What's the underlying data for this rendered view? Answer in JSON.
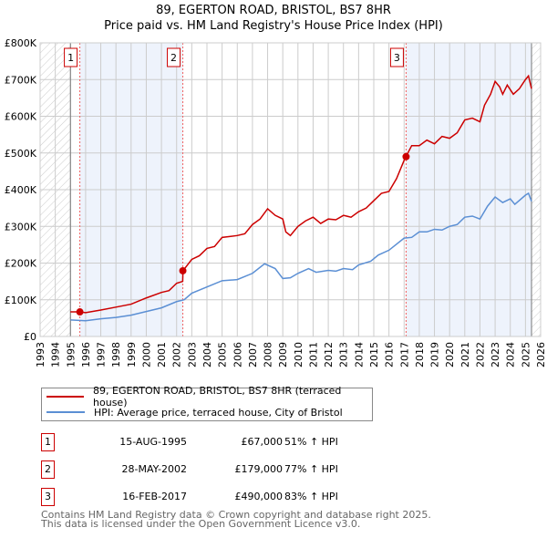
{
  "chart_data": {
    "type": "line",
    "title": "89, EGERTON ROAD, BRISTOL, BS7 8HR",
    "subtitle": "Price paid vs. HM Land Registry's House Price Index (HPI)",
    "xlim": [
      1993,
      2026
    ],
    "ylim": [
      0,
      800000
    ],
    "x_ticks": [
      "1993",
      "1994",
      "1995",
      "1996",
      "1997",
      "1998",
      "1999",
      "2000",
      "2001",
      "2002",
      "2003",
      "2004",
      "2005",
      "2006",
      "2007",
      "2008",
      "2009",
      "2010",
      "2011",
      "2012",
      "2013",
      "2014",
      "2015",
      "2016",
      "2017",
      "2018",
      "2019",
      "2020",
      "2021",
      "2022",
      "2023",
      "2024",
      "2025",
      "2026"
    ],
    "y_ticks": [
      {
        "v": 0,
        "label": "£0"
      },
      {
        "v": 100000,
        "label": "£100K"
      },
      {
        "v": 200000,
        "label": "£200K"
      },
      {
        "v": 300000,
        "label": "£300K"
      },
      {
        "v": 400000,
        "label": "£400K"
      },
      {
        "v": 500000,
        "label": "£500K"
      },
      {
        "v": 600000,
        "label": "£600K"
      },
      {
        "v": 700000,
        "label": "£700K"
      },
      {
        "v": 800000,
        "label": "£800K"
      }
    ],
    "grid": true,
    "data_start": 1995.0,
    "data_end": 2025.4,
    "series": [
      {
        "name": "89, EGERTON ROAD, BRISTOL, BS7 8HR (terraced house)",
        "color": "#cc0000",
        "x": [
          1995,
          1995.6,
          1996,
          1997,
          1998,
          1999,
          2000,
          2001,
          2001.5,
          2002,
          2002.4,
          2002.42,
          2003,
          2003.5,
          2004,
          2004.5,
          2005,
          2006,
          2006.5,
          2007,
          2007.5,
          2008,
          2008.5,
          2009,
          2009.2,
          2009.5,
          2010,
          2010.5,
          2011,
          2011.5,
          2012,
          2012.5,
          2013,
          2013.5,
          2014,
          2014.5,
          2015,
          2015.5,
          2016,
          2016.5,
          2017,
          2017.12,
          2017.5,
          2018,
          2018.5,
          2019,
          2019.5,
          2020,
          2020.5,
          2021,
          2021.5,
          2022,
          2022.3,
          2022.7,
          2023,
          2023.3,
          2023.5,
          2023.8,
          2024.2,
          2024.6,
          2025,
          2025.2,
          2025.4
        ],
        "y": [
          67000,
          67000,
          65000,
          72000,
          80000,
          88000,
          105000,
          120000,
          125000,
          145000,
          150000,
          179000,
          210000,
          220000,
          240000,
          245000,
          270000,
          275000,
          280000,
          305000,
          320000,
          348000,
          330000,
          320000,
          285000,
          275000,
          300000,
          315000,
          325000,
          308000,
          320000,
          318000,
          330000,
          325000,
          340000,
          350000,
          370000,
          390000,
          395000,
          430000,
          480000,
          490000,
          520000,
          520000,
          535000,
          525000,
          545000,
          540000,
          555000,
          590000,
          595000,
          585000,
          630000,
          660000,
          695000,
          680000,
          660000,
          685000,
          660000,
          675000,
          700000,
          710000,
          675000
        ]
      },
      {
        "name": "HPI: Average price, terraced house, City of Bristol",
        "color": "#5b8fd4",
        "x": [
          1995,
          1996,
          1997,
          1998,
          1999,
          2000,
          2001,
          2002,
          2002.5,
          2003,
          2004,
          2005,
          2006,
          2007,
          2007.8,
          2008.5,
          2009,
          2009.5,
          2010,
          2010.7,
          2011.2,
          2012,
          2012.5,
          2013,
          2013.6,
          2014,
          2014.8,
          2015.3,
          2016,
          2017,
          2017.5,
          2018,
          2018.5,
          2019,
          2019.5,
          2020,
          2020.5,
          2021,
          2021.5,
          2022,
          2022.5,
          2023,
          2023.5,
          2024,
          2024.3,
          2025,
          2025.2,
          2025.4
        ],
        "y": [
          45000,
          43000,
          48000,
          52000,
          58000,
          68000,
          78000,
          95000,
          100000,
          118000,
          135000,
          152000,
          155000,
          172000,
          198000,
          185000,
          158000,
          160000,
          172000,
          185000,
          175000,
          180000,
          178000,
          185000,
          182000,
          195000,
          205000,
          222000,
          235000,
          268000,
          270000,
          285000,
          285000,
          292000,
          290000,
          300000,
          305000,
          325000,
          328000,
          320000,
          355000,
          380000,
          365000,
          375000,
          360000,
          385000,
          390000,
          368000
        ]
      }
    ],
    "sales": [
      {
        "label": "1",
        "x": 1995.62,
        "date": "15-AUG-1995",
        "price_value": 67000,
        "price": "£67,000",
        "hpi": "51% ↑ HPI"
      },
      {
        "label": "2",
        "x": 2002.41,
        "date": "28-MAY-2002",
        "price_value": 179000,
        "price": "£179,000",
        "hpi": "77% ↑ HPI"
      },
      {
        "label": "3",
        "x": 2017.13,
        "date": "16-FEB-2017",
        "price_value": 490000,
        "price": "£490,000",
        "hpi": "83% ↑ HPI"
      }
    ]
  },
  "title": "89, EGERTON ROAD, BRISTOL, BS7 8HR",
  "subtitle": "Price paid vs. HM Land Registry's House Price Index (HPI)",
  "legend": [
    "89, EGERTON ROAD, BRISTOL, BS7 8HR (terraced house)",
    "HPI: Average price, terraced house, City of Bristol"
  ],
  "footer": [
    "Contains HM Land Registry data © Crown copyright and database right 2025.",
    "This data is licensed under the Open Government Licence v3.0."
  ]
}
